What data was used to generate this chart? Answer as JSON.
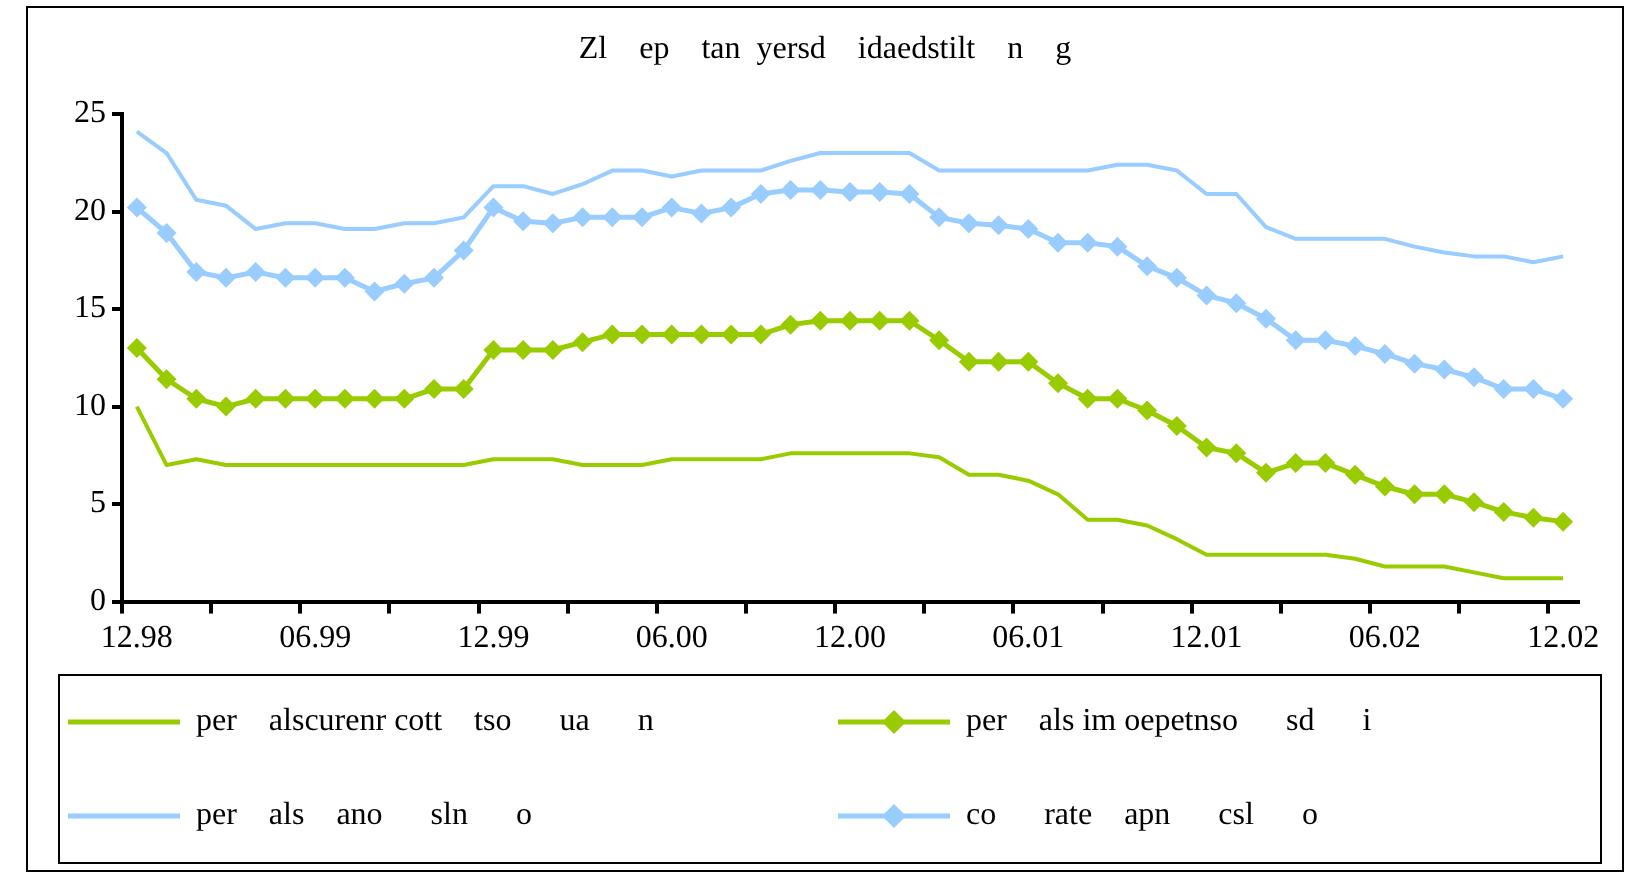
{
  "chart_data": {
    "type": "line",
    "title": "Zl    ep    tan  yersd    idaedstilt    n    g",
    "categories": [
      "12.98",
      null,
      null,
      null,
      null,
      null,
      "06.99",
      null,
      null,
      null,
      null,
      null,
      "12.99",
      null,
      null,
      null,
      null,
      null,
      "06.00",
      null,
      null,
      null,
      null,
      null,
      "12.00",
      null,
      null,
      null,
      null,
      null,
      "06.01",
      null,
      null,
      null,
      null,
      null,
      "12.01",
      null,
      null,
      null,
      null,
      null,
      "06.02",
      null,
      null,
      null,
      null,
      null,
      "12.02"
    ],
    "series": [
      {
        "name": "per    alscurenr cott    tso      ua      n",
        "color": "#99cc00",
        "marker": "none",
        "values": [
          10,
          7.0,
          7.3,
          7.0,
          7.0,
          7.0,
          7.0,
          7.0,
          7.0,
          7.0,
          7.0,
          7.0,
          7.3,
          7.3,
          7.3,
          7.0,
          7.0,
          7.0,
          7.3,
          7.3,
          7.3,
          7.3,
          7.6,
          7.6,
          7.6,
          7.6,
          7.6,
          7.4,
          6.5,
          6.5,
          6.2,
          5.5,
          4.2,
          4.2,
          3.9,
          3.2,
          2.4,
          2.4,
          2.4,
          2.4,
          2.4,
          2.2,
          1.8,
          1.8,
          1.8,
          1.5,
          1.2,
          1.2,
          1.2
        ]
      },
      {
        "name": "per    als im oepetnso      sd      i",
        "color": "#99cc00",
        "marker": "diamond",
        "values": [
          13.0,
          11.4,
          10.4,
          10.0,
          10.4,
          10.4,
          10.4,
          10.4,
          10.4,
          10.4,
          10.9,
          10.9,
          12.9,
          12.9,
          12.9,
          13.3,
          13.7,
          13.7,
          13.7,
          13.7,
          13.7,
          13.7,
          14.2,
          14.4,
          14.4,
          14.4,
          14.4,
          13.4,
          12.3,
          12.3,
          12.3,
          11.2,
          10.4,
          10.4,
          9.8,
          9.0,
          7.9,
          7.6,
          6.6,
          7.1,
          7.1,
          6.5,
          5.9,
          5.5,
          5.5,
          5.1,
          4.6,
          4.3,
          4.1
        ]
      },
      {
        "name": "per    als    ano      sln      o",
        "color": "#99ccff",
        "marker": "none",
        "values": [
          24.1,
          23.0,
          20.6,
          20.3,
          19.1,
          19.4,
          19.4,
          19.1,
          19.1,
          19.4,
          19.4,
          19.7,
          21.3,
          21.3,
          20.9,
          21.4,
          22.1,
          22.1,
          21.8,
          22.1,
          22.1,
          22.1,
          22.6,
          23.0,
          23.0,
          23.0,
          23.0,
          22.1,
          22.1,
          22.1,
          22.1,
          22.1,
          22.1,
          22.4,
          22.4,
          22.1,
          20.9,
          20.9,
          19.2,
          18.6,
          18.6,
          18.6,
          18.6,
          18.2,
          17.9,
          17.7,
          17.7,
          17.4,
          17.7
        ]
      },
      {
        "name": "co      rate    apn      csl      o",
        "color": "#99ccff",
        "marker": "diamond",
        "values": [
          20.2,
          18.9,
          16.9,
          16.6,
          16.9,
          16.6,
          16.6,
          16.6,
          15.9,
          16.3,
          16.6,
          18.0,
          20.2,
          19.5,
          19.4,
          19.7,
          19.7,
          19.7,
          20.2,
          19.9,
          20.2,
          20.9,
          21.1,
          21.1,
          21.0,
          21.0,
          20.9,
          19.7,
          19.4,
          19.3,
          19.1,
          18.4,
          18.4,
          18.2,
          17.2,
          16.6,
          15.7,
          15.3,
          14.5,
          13.4,
          13.4,
          13.1,
          12.7,
          12.2,
          11.9,
          11.5,
          10.9,
          10.9,
          10.4
        ]
      }
    ],
    "ylim": [
      0,
      25
    ],
    "yticks": [
      0,
      5,
      10,
      15,
      20,
      25
    ],
    "grid": false,
    "legend": "bottom",
    "line_style": "solid"
  }
}
